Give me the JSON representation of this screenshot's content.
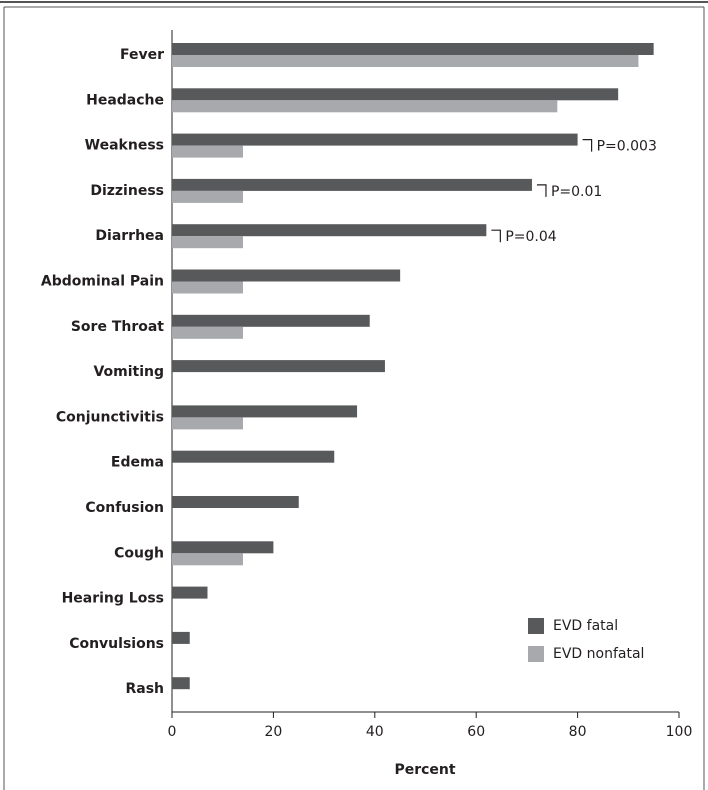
{
  "chart_data": {
    "type": "hbar",
    "categories": [
      "Fever",
      "Headache",
      "Weakness",
      "Dizziness",
      "Diarrhea",
      "Abdominal Pain",
      "Sore Throat",
      "Vomiting",
      "Conjunctivitis",
      "Edema",
      "Confusion",
      "Cough",
      "Hearing Loss",
      "Convulsions",
      "Rash"
    ],
    "series": [
      {
        "name": "EVD fatal",
        "color": "#58595b",
        "values": [
          95,
          88,
          80,
          71,
          62,
          45,
          39,
          42,
          36.5,
          32,
          25,
          20,
          7,
          3.5,
          3.5
        ]
      },
      {
        "name": "EVD nonfatal",
        "color": "#a7a9ac",
        "values": [
          92,
          76,
          14,
          14,
          14,
          14,
          14,
          null,
          14,
          null,
          null,
          14,
          null,
          null,
          null
        ]
      }
    ],
    "xlabel": "Percent",
    "xlim": [
      0,
      100
    ],
    "xticks": [
      0,
      20,
      40,
      60,
      80,
      100
    ],
    "legend": "lower right",
    "annotations": [
      {
        "text": "P=0.003",
        "category": "Weakness"
      },
      {
        "text": "P=0.01",
        "category": "Dizziness"
      },
      {
        "text": "P=0.04",
        "category": "Diarrhea"
      }
    ]
  }
}
